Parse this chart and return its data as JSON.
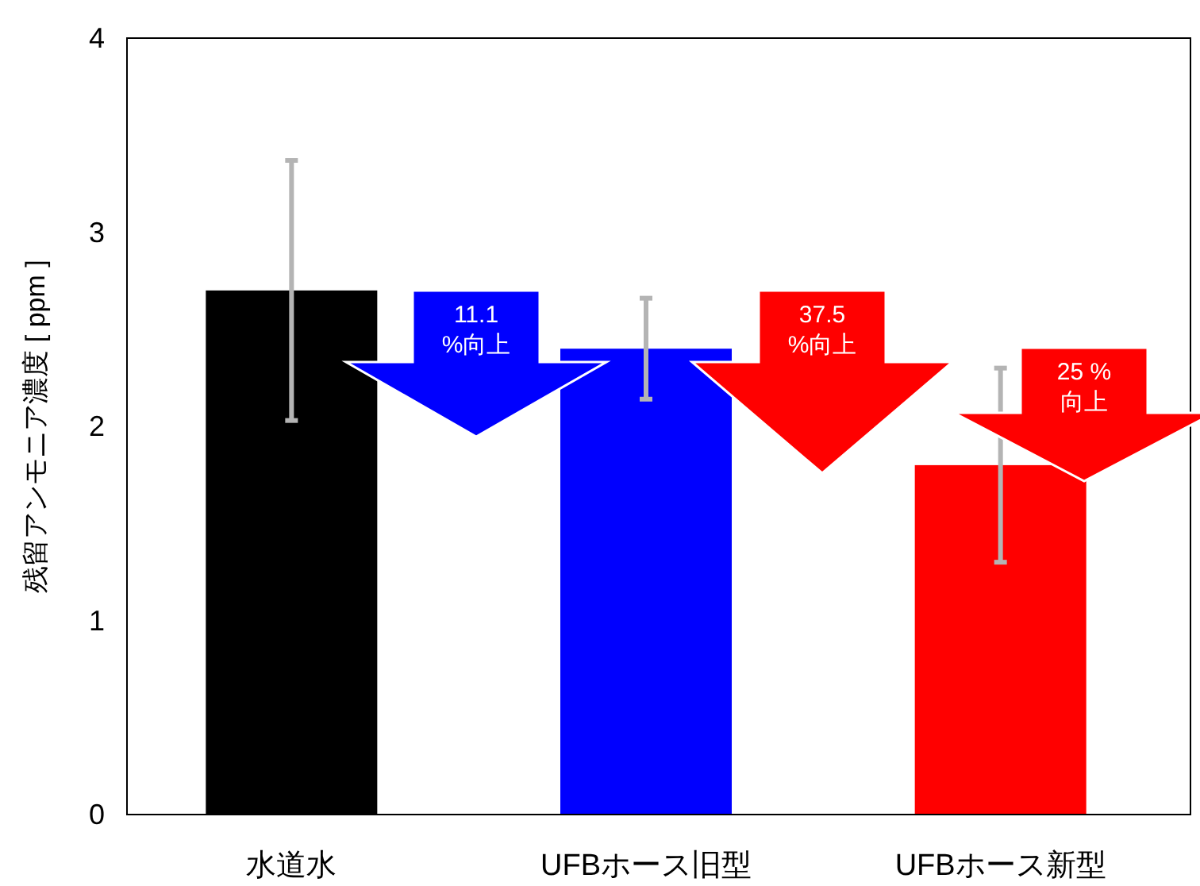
{
  "chart_data": {
    "type": "bar",
    "ylabel": "残留アンモニア濃度 [ ppm ]",
    "categories": [
      "水道水",
      "UFBホース旧型",
      "UFBホース新型"
    ],
    "values": [
      2.7,
      2.4,
      1.8
    ],
    "colors": [
      "#000000",
      "#0000ff",
      "#ff0000"
    ],
    "errors": [
      0.67,
      0.26,
      0.5
    ],
    "ylim": [
      0,
      4
    ],
    "yticks": [
      0,
      1,
      2,
      3,
      4
    ],
    "annotations": [
      "11.1\n%向上",
      "37.5\n%向上",
      "25 %\n向上"
    ]
  }
}
